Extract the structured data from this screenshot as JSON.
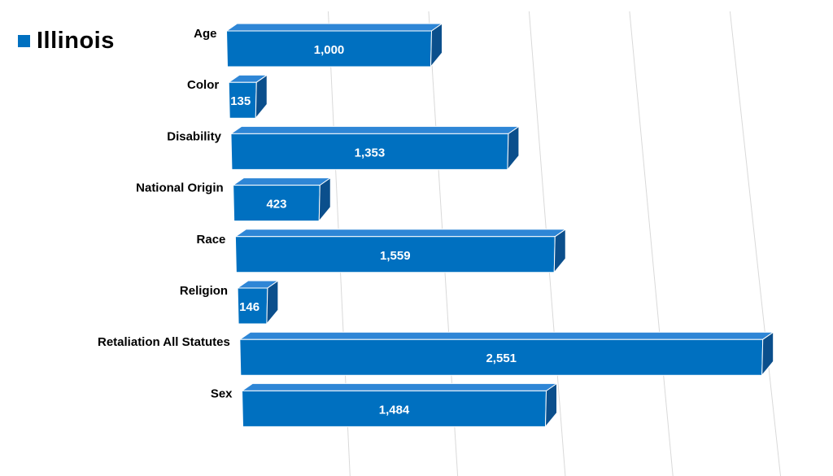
{
  "legend": {
    "label": "Illinois",
    "color": "#0070c0"
  },
  "chart_data": {
    "type": "bar",
    "orientation": "horizontal",
    "style": "3d",
    "grid": true,
    "legend_position": "top-left",
    "title": "",
    "xlabel": "",
    "ylabel": "",
    "categories": [
      "Age",
      "Color",
      "Disability",
      "National Origin",
      "Race",
      "Religion",
      "Retaliation All Statutes",
      "Sex"
    ],
    "series": [
      {
        "name": "Illinois",
        "color": "#0070c0",
        "values": [
          1000,
          135,
          1353,
          423,
          1559,
          146,
          2551,
          1484
        ],
        "value_labels": [
          "1,000",
          "135",
          "1,353",
          "423",
          "1,559",
          "146",
          "2,551",
          "1,484"
        ]
      }
    ],
    "xlim": [
      0,
      2600
    ]
  }
}
